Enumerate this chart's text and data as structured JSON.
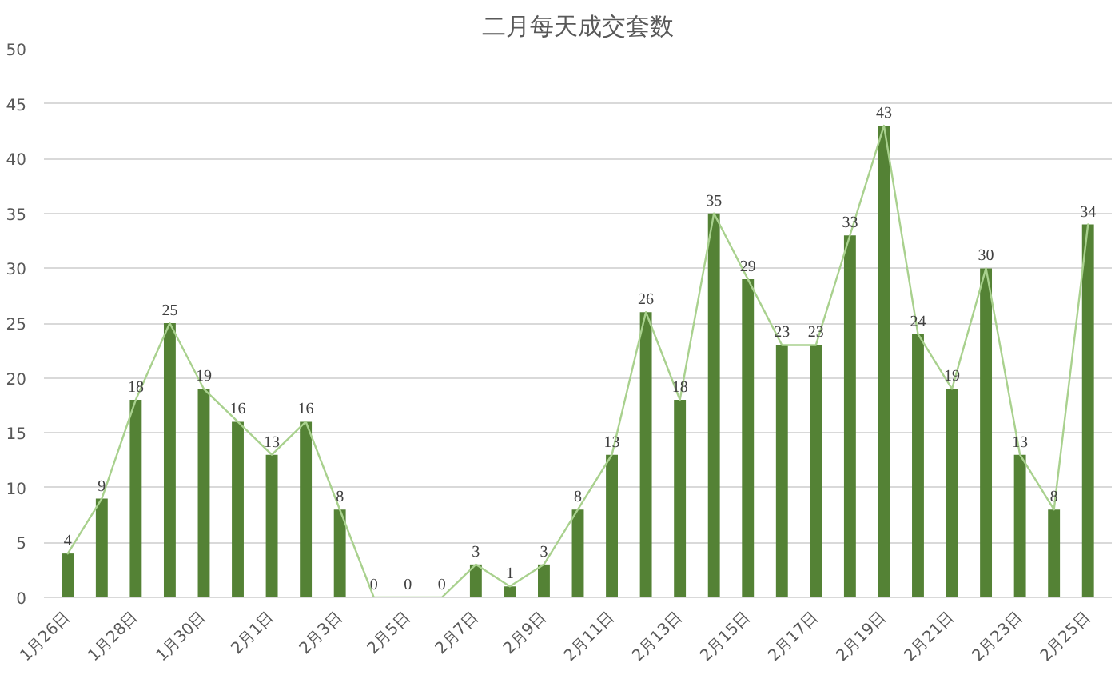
{
  "chart_data": {
    "type": "bar",
    "title": "二月每天成交套数",
    "categories": [
      "1月26日",
      null,
      "1月28日",
      null,
      "1月30日",
      null,
      "2月1日",
      null,
      "2月3日",
      null,
      "2月5日",
      null,
      "2月7日",
      null,
      "2月9日",
      null,
      "2月11日",
      null,
      "2月13日",
      null,
      "2月15日",
      null,
      "2月17日",
      null,
      "2月19日",
      null,
      "2月21日",
      null,
      "2月23日",
      null,
      "2月25日"
    ],
    "series": [
      {
        "color": "#548235",
        "values": [
          4,
          9,
          18,
          25,
          19,
          16,
          13,
          16,
          8,
          0,
          0,
          0,
          3,
          1,
          3,
          8,
          13,
          26,
          18,
          35,
          29,
          23,
          23,
          33,
          43,
          24,
          19,
          30,
          13,
          8,
          34
        ],
        "value_labels": [
          "4",
          "9",
          "18",
          "25",
          "19",
          "16",
          "13",
          "16",
          "8",
          "0",
          "0",
          "0",
          "3",
          "1",
          "3",
          "8",
          "13",
          "26",
          "18",
          "35",
          "29",
          "23",
          "23",
          "33",
          "43",
          "24",
          "19",
          "30",
          "13",
          "8",
          "34"
        ]
      },
      {
        "type": "line",
        "color": "#a9d18e",
        "values": [
          4,
          9,
          18,
          25,
          19,
          16,
          13,
          16,
          8,
          0,
          0,
          0,
          3,
          1,
          3,
          8,
          13,
          26,
          18,
          35,
          29,
          23,
          23,
          33,
          43,
          24,
          19,
          30,
          13,
          8,
          34
        ]
      }
    ],
    "ylim": [
      0,
      50
    ],
    "yticks": [
      0,
      5,
      10,
      15,
      20,
      25,
      30,
      35,
      40,
      45,
      50
    ],
    "grid": "y"
  }
}
